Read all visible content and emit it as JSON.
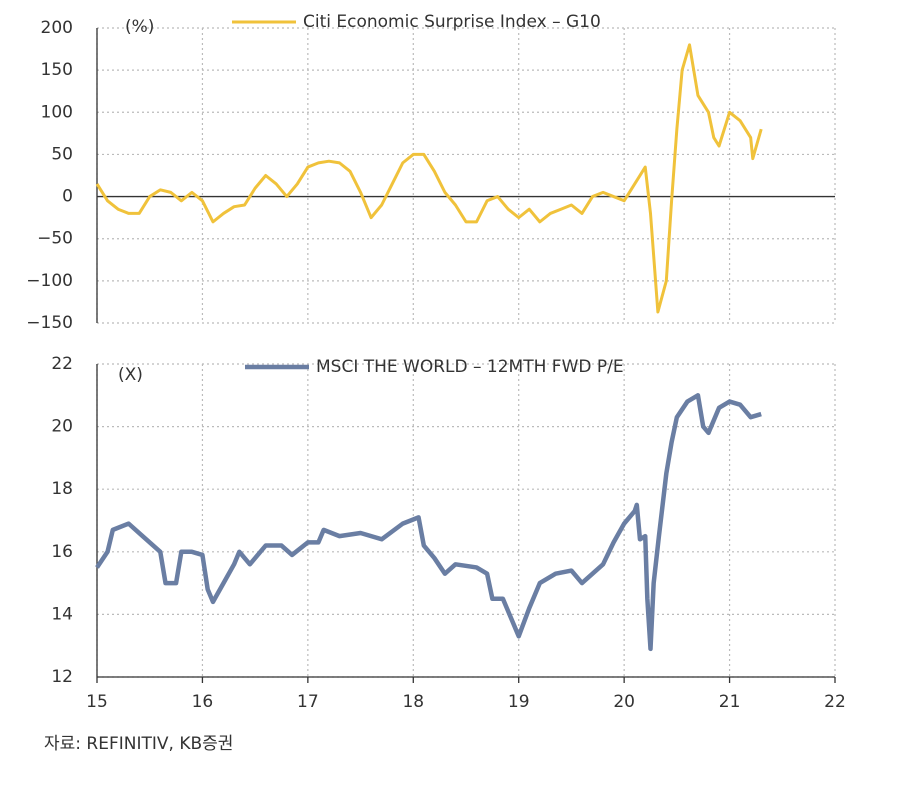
{
  "chart_data": [
    {
      "type": "line",
      "y_unit_label": "(%)",
      "x": [
        15.0,
        15.1,
        15.2,
        15.3,
        15.4,
        15.5,
        15.6,
        15.7,
        15.8,
        15.9,
        16.0,
        16.1,
        16.2,
        16.3,
        16.4,
        16.5,
        16.6,
        16.7,
        16.8,
        16.9,
        17.0,
        17.1,
        17.2,
        17.3,
        17.4,
        17.5,
        17.6,
        17.7,
        17.8,
        17.9,
        18.0,
        18.1,
        18.2,
        18.3,
        18.4,
        18.5,
        18.6,
        18.7,
        18.8,
        18.9,
        19.0,
        19.1,
        19.2,
        19.3,
        19.4,
        19.5,
        19.6,
        19.7,
        19.8,
        19.9,
        20.0,
        20.1,
        20.2,
        20.25,
        20.32,
        20.4,
        20.45,
        20.5,
        20.55,
        20.62,
        20.7,
        20.8,
        20.85,
        20.9,
        21.0,
        21.1,
        21.2,
        21.22,
        21.3
      ],
      "series": [
        {
          "name": "Citi Economic Surprise Index – G10",
          "color": "#f0c23b",
          "values": [
            15,
            -5,
            -15,
            -20,
            -20,
            0,
            8,
            5,
            -5,
            5,
            -5,
            -30,
            -20,
            -12,
            -10,
            10,
            25,
            15,
            0,
            15,
            35,
            40,
            42,
            40,
            30,
            5,
            -25,
            -10,
            15,
            40,
            50,
            50,
            30,
            5,
            -10,
            -30,
            -30,
            -5,
            0,
            -15,
            -25,
            -15,
            -30,
            -20,
            -15,
            -10,
            -20,
            0,
            5,
            0,
            -5,
            15,
            35,
            -20,
            -137,
            -100,
            -5,
            80,
            150,
            180,
            120,
            100,
            70,
            60,
            100,
            90,
            70,
            45,
            80
          ]
        }
      ],
      "xlim": [
        15,
        22
      ],
      "xticks": [
        15,
        16,
        17,
        18,
        19,
        20,
        21,
        22
      ],
      "show_xtick_labels": false,
      "ylim": [
        -150,
        200
      ],
      "yticks": [
        {
          "value": -150,
          "label": "−150"
        },
        {
          "value": -100,
          "label": "−100"
        },
        {
          "value": -50,
          "label": "−50"
        },
        0,
        50,
        100,
        150,
        200
      ],
      "grid": true
    },
    {
      "type": "line",
      "y_unit_label": "(X)",
      "x": [
        15.0,
        15.1,
        15.15,
        15.3,
        15.4,
        15.5,
        15.6,
        15.65,
        15.75,
        15.8,
        15.9,
        16.0,
        16.05,
        16.1,
        16.2,
        16.3,
        16.35,
        16.45,
        16.6,
        16.75,
        16.85,
        17.0,
        17.1,
        17.15,
        17.3,
        17.5,
        17.7,
        17.9,
        18.05,
        18.1,
        18.2,
        18.3,
        18.4,
        18.6,
        18.7,
        18.75,
        18.85,
        19.0,
        19.1,
        19.2,
        19.35,
        19.5,
        19.6,
        19.7,
        19.8,
        19.9,
        20.0,
        20.1,
        20.12,
        20.15,
        20.2,
        20.22,
        20.25,
        20.28,
        20.33,
        20.4,
        20.45,
        20.5,
        20.6,
        20.7,
        20.75,
        20.8,
        20.9,
        21.0,
        21.1,
        21.2,
        21.3
      ],
      "series": [
        {
          "name": "MSCI THE WORLD – 12MTH FWD P/E",
          "color": "#6a7ea3",
          "values": [
            15.5,
            16,
            16.7,
            16.9,
            16.6,
            16.3,
            16,
            15,
            15,
            16,
            16,
            15.9,
            14.8,
            14.4,
            15,
            15.6,
            16,
            15.6,
            16.2,
            16.2,
            15.9,
            16.3,
            16.3,
            16.7,
            16.5,
            16.6,
            16.4,
            16.9,
            17.1,
            16.2,
            15.8,
            15.3,
            15.6,
            15.5,
            15.3,
            14.5,
            14.5,
            13.3,
            14.2,
            15,
            15.3,
            15.4,
            15,
            15.3,
            15.6,
            16.3,
            16.9,
            17.3,
            17.5,
            16.4,
            16.5,
            14.5,
            12.9,
            15,
            16.5,
            18.5,
            19.5,
            20.3,
            20.8,
            21,
            20,
            19.8,
            20.6,
            20.8,
            20.7,
            20.3,
            20.4
          ]
        }
      ],
      "xlim": [
        15,
        22
      ],
      "xticks": [
        15,
        16,
        17,
        18,
        19,
        20,
        21,
        22
      ],
      "show_xtick_labels": true,
      "ylim": [
        12,
        22
      ],
      "yticks": [
        12,
        14,
        16,
        18,
        20,
        22
      ],
      "grid": true
    }
  ],
  "source": "자료: REFINITIV, KB증권"
}
